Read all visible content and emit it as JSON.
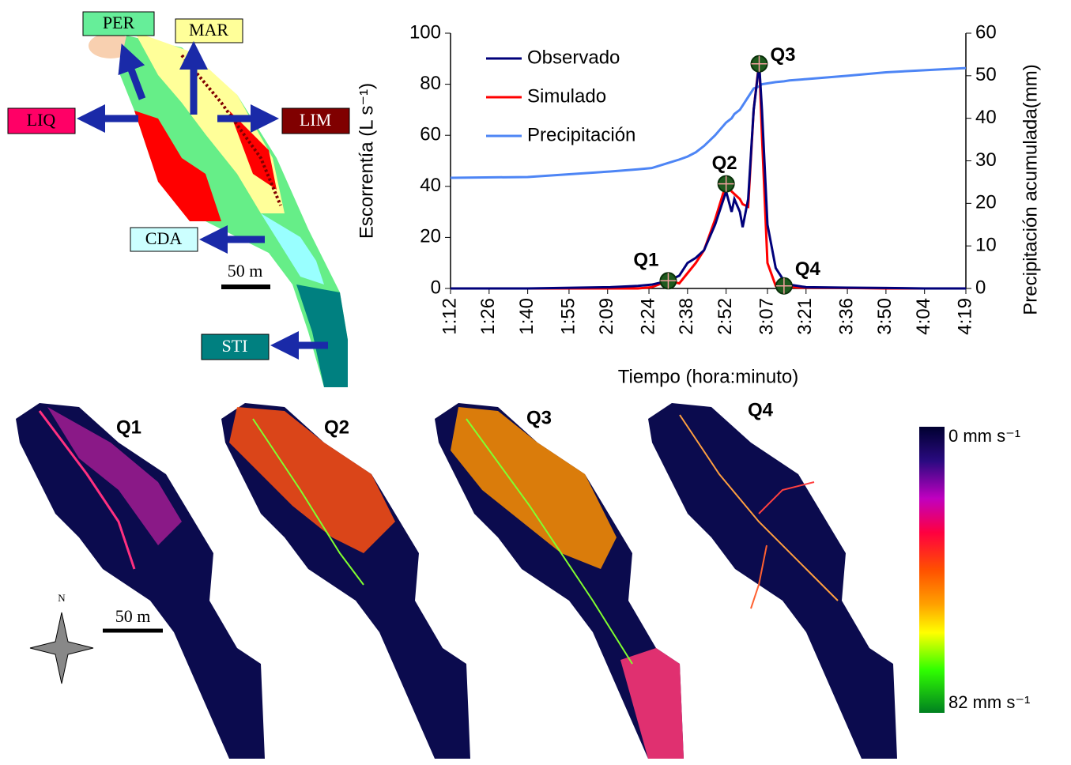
{
  "chart_data": {
    "type": "line",
    "x_label": "Tiempo (hora:minuto)",
    "y_label": "Escorrentía (L s⁻¹)",
    "y2_label": "Precipitación acumulada(mm)",
    "x": [
      72,
      100,
      130,
      140,
      145,
      151,
      155,
      158,
      161,
      164,
      168,
      172,
      174,
      175,
      177,
      178,
      180,
      182,
      184,
      185,
      187,
      190,
      193,
      195,
      201,
      216,
      230,
      244,
      259
    ],
    "series": [
      {
        "name": "Observado",
        "color": "#00007a",
        "values": [
          0,
          0,
          0.5,
          1,
          1.5,
          3,
          5,
          10,
          12,
          15,
          25,
          38,
          30,
          35,
          30,
          24,
          35,
          70,
          88,
          70,
          25,
          8,
          3,
          1.5,
          0.5,
          0.3,
          0.2,
          0,
          0
        ]
      },
      {
        "name": "Simulado",
        "color": "#ff0000",
        "values": [
          0,
          0,
          0,
          0,
          0.5,
          3,
          2,
          6,
          10,
          15,
          27,
          41,
          38,
          37,
          35,
          33,
          32,
          70,
          89,
          60,
          10,
          1,
          0.5,
          0.5,
          0.3,
          0.2,
          0,
          0,
          0
        ]
      },
      {
        "name": "Precipitación",
        "color": "#4d85f5",
        "axis": "y2",
        "values": [
          26,
          26.2,
          27.5,
          28,
          28.3,
          29.5,
          30.3,
          31,
          32,
          33.5,
          36,
          39,
          40,
          41,
          42,
          43,
          45,
          47,
          47.5,
          48,
          48.2,
          48.5,
          48.7,
          48.9,
          49.2,
          50,
          50.8,
          51.3,
          51.8
        ]
      }
    ],
    "xlim": [
      72,
      259
    ],
    "xticks": [
      {
        "value": 72,
        "label": "1:12"
      },
      {
        "value": 86,
        "label": "1:26"
      },
      {
        "value": 100,
        "label": "1:40"
      },
      {
        "value": 115,
        "label": "1:55"
      },
      {
        "value": 129,
        "label": "2:09"
      },
      {
        "value": 144,
        "label": "2:24"
      },
      {
        "value": 158,
        "label": "2:38"
      },
      {
        "value": 172,
        "label": "2:52"
      },
      {
        "value": 187,
        "label": "3:07"
      },
      {
        "value": 201,
        "label": "3:21"
      },
      {
        "value": 216,
        "label": "3:36"
      },
      {
        "value": 230,
        "label": "3:50"
      },
      {
        "value": 244,
        "label": "4:04"
      },
      {
        "value": 259,
        "label": "4:19"
      }
    ],
    "ylim": [
      0,
      100
    ],
    "yticks": [
      0,
      20,
      40,
      60,
      80,
      100
    ],
    "y2lim": [
      0,
      60
    ],
    "y2ticks": [
      0,
      10,
      20,
      30,
      40,
      50,
      60
    ],
    "legend": "top-left",
    "annotations": [
      {
        "text": "Q1",
        "x": 151,
        "y": 3
      },
      {
        "text": "Q2",
        "x": 172,
        "y": 41
      },
      {
        "text": "Q3",
        "x": 184,
        "y": 88
      },
      {
        "text": "Q4",
        "x": 193,
        "y": 1
      }
    ]
  },
  "map": {
    "labels": [
      "PER",
      "MAR",
      "LIQ",
      "LIM",
      "CDA",
      "STI"
    ],
    "scale": "50 m"
  },
  "panels": [
    "Q1",
    "Q2",
    "Q3",
    "Q4"
  ],
  "scale": "50 m",
  "north": "N",
  "colorbar": {
    "top": "0 mm s⁻¹",
    "bottom": "82 mm s⁻¹"
  }
}
